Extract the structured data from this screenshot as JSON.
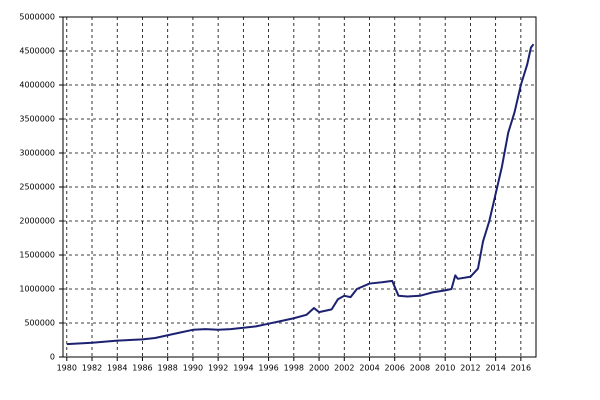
{
  "chart_data": {
    "type": "line",
    "color": "#1c2270",
    "x": [
      1980,
      1982,
      1984,
      1986,
      1987,
      1988,
      1989,
      1990,
      1991,
      1992,
      1993,
      1994,
      1995,
      1996,
      1997,
      1998,
      1999,
      1999.6,
      2000,
      2001,
      2001.5,
      2002,
      2002.5,
      2003,
      2004,
      2005,
      2005.8,
      2006.3,
      2007,
      2008,
      2009,
      2010,
      2010.5,
      2010.8,
      2011,
      2012,
      2012.6,
      2013,
      2013.5,
      2014,
      2014.5,
      2015,
      2015.5,
      2016,
      2016.5,
      2016.8,
      2017
    ],
    "values": [
      190000,
      210000,
      240000,
      260000,
      280000,
      320000,
      360000,
      400000,
      410000,
      400000,
      410000,
      430000,
      450000,
      490000,
      530000,
      570000,
      620000,
      720000,
      660000,
      700000,
      850000,
      900000,
      880000,
      1000000,
      1080000,
      1100000,
      1120000,
      900000,
      890000,
      900000,
      950000,
      980000,
      1000000,
      1200000,
      1150000,
      1180000,
      1300000,
      1700000,
      2000000,
      2400000,
      2800000,
      3300000,
      3600000,
      4000000,
      4300000,
      4550000,
      4600000
    ],
    "xlim": [
      1979.7,
      2017.2
    ],
    "xticks": [
      1980,
      1982,
      1984,
      1986,
      1988,
      1990,
      1992,
      1994,
      1996,
      1998,
      2000,
      2002,
      2004,
      2006,
      2008,
      2010,
      2012,
      2014,
      2016
    ],
    "ylim": [
      0,
      5000000
    ],
    "yticks": [
      0,
      500000,
      1000000,
      1500000,
      2000000,
      2500000,
      3000000,
      3500000,
      4000000,
      4500000,
      5000000
    ],
    "grid": true
  }
}
